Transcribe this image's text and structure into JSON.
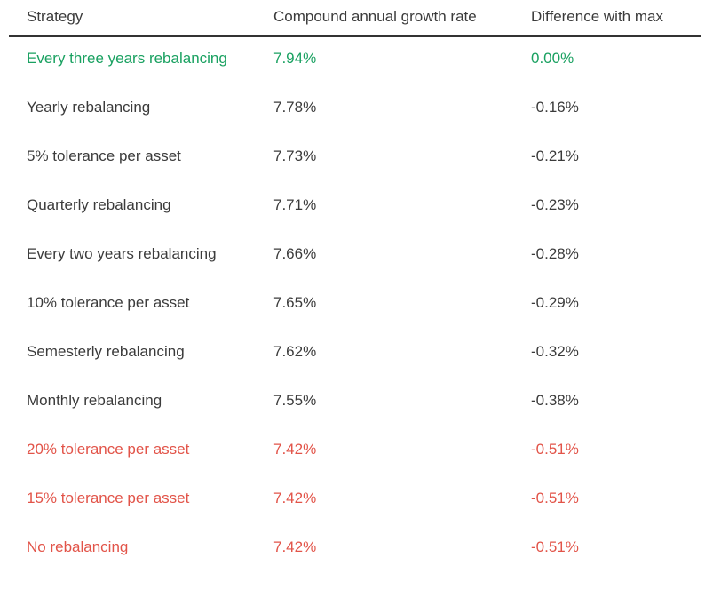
{
  "colors": {
    "best": "#1aa161",
    "default": "#3b3b3b",
    "worst": "#e25449",
    "header_text": "#3b3b3b",
    "divider": "#333333",
    "background": "#ffffff"
  },
  "chart_data": {
    "type": "table",
    "columns": [
      "Strategy",
      "Compound annual growth rate",
      "Difference with max"
    ],
    "rows": [
      [
        "Every three years rebalancing",
        "7.94%",
        "0.00%"
      ],
      [
        "Yearly rebalancing",
        "7.78%",
        "-0.16%"
      ],
      [
        "5% tolerance per asset",
        "7.73%",
        "-0.21%"
      ],
      [
        "Quarterly rebalancing",
        "7.71%",
        "-0.23%"
      ],
      [
        "Every two years rebalancing",
        "7.66%",
        "-0.28%"
      ],
      [
        "10% tolerance per asset",
        "7.65%",
        "-0.29%"
      ],
      [
        "Semesterly rebalancing",
        "7.62%",
        "-0.32%"
      ],
      [
        "Monthly rebalancing",
        "7.55%",
        "-0.38%"
      ],
      [
        "20% tolerance per asset",
        "7.42%",
        "-0.51%"
      ],
      [
        "15% tolerance per asset",
        "7.42%",
        "-0.51%"
      ],
      [
        "No rebalancing",
        "7.42%",
        "-0.51%"
      ]
    ],
    "row_status": [
      "best",
      "default",
      "default",
      "default",
      "default",
      "default",
      "default",
      "default",
      "worst",
      "worst",
      "worst"
    ],
    "title": "",
    "legend": "row color indicates best (green) / worst (red) performing strategies",
    "grid": "header divider only"
  }
}
